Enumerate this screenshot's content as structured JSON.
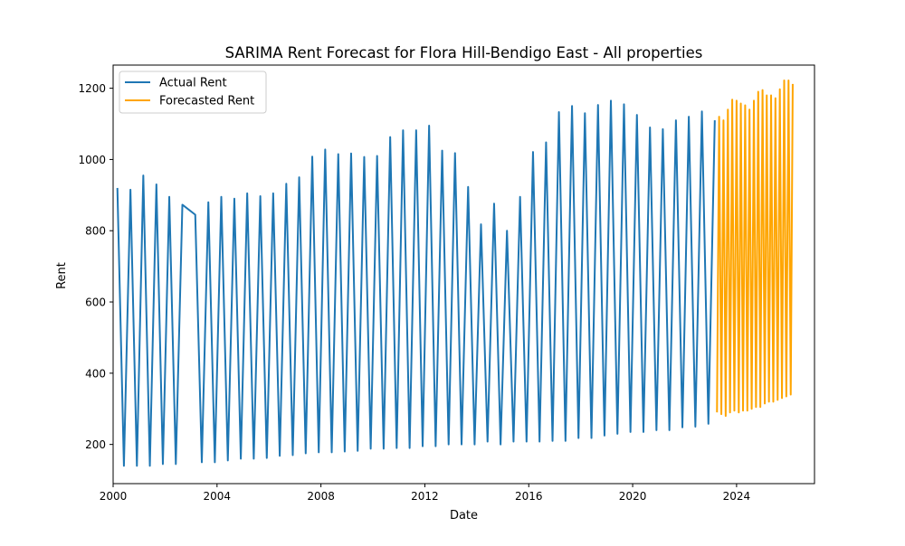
{
  "chart_data": {
    "type": "line",
    "title": "SARIMA Rent Forecast for Flora Hill-Bendigo East - All properties",
    "xlabel": "Date",
    "ylabel": "Rent",
    "xlim": [
      "2000-01-01",
      "2027-01-01"
    ],
    "ylim": [
      90,
      1265
    ],
    "x_ticks": [
      "2000",
      "2004",
      "2008",
      "2012",
      "2016",
      "2020",
      "2024"
    ],
    "y_ticks": [
      200,
      400,
      600,
      800,
      1000,
      1200
    ],
    "grid": false,
    "legend_position": "top-left",
    "series": [
      {
        "name": "Actual Rent",
        "color": "#1f77b4",
        "points": [
          [
            "2000-03-01",
            920
          ],
          [
            "2000-06-01",
            140
          ],
          [
            "2000-09-01",
            915
          ],
          [
            "2000-12-01",
            140
          ],
          [
            "2001-03-01",
            955
          ],
          [
            "2001-06-01",
            140
          ],
          [
            "2001-09-01",
            930
          ],
          [
            "2001-12-01",
            145
          ],
          [
            "2002-03-01",
            895
          ],
          [
            "2002-06-01",
            145
          ],
          [
            "2002-09-01",
            873
          ],
          [
            "2003-03-01",
            845
          ],
          [
            "2003-06-01",
            150
          ],
          [
            "2003-09-01",
            880
          ],
          [
            "2003-12-01",
            150
          ],
          [
            "2004-03-01",
            895
          ],
          [
            "2004-06-01",
            155
          ],
          [
            "2004-09-01",
            890
          ],
          [
            "2004-12-01",
            160
          ],
          [
            "2005-03-01",
            905
          ],
          [
            "2005-06-01",
            160
          ],
          [
            "2005-09-01",
            897
          ],
          [
            "2005-12-01",
            162
          ],
          [
            "2006-03-01",
            905
          ],
          [
            "2006-06-01",
            168
          ],
          [
            "2006-09-01",
            932
          ],
          [
            "2006-12-01",
            170
          ],
          [
            "2007-03-01",
            950
          ],
          [
            "2007-06-01",
            175
          ],
          [
            "2007-09-01",
            1008
          ],
          [
            "2007-12-01",
            178
          ],
          [
            "2008-03-01",
            1028
          ],
          [
            "2008-06-01",
            178
          ],
          [
            "2008-09-01",
            1015
          ],
          [
            "2008-12-01",
            180
          ],
          [
            "2009-03-01",
            1017
          ],
          [
            "2009-06-01",
            182
          ],
          [
            "2009-09-01",
            1007
          ],
          [
            "2009-12-01",
            188
          ],
          [
            "2010-03-01",
            1010
          ],
          [
            "2010-06-01",
            188
          ],
          [
            "2010-09-01",
            1063
          ],
          [
            "2010-12-01",
            190
          ],
          [
            "2011-03-01",
            1082
          ],
          [
            "2011-06-01",
            190
          ],
          [
            "2011-09-01",
            1082
          ],
          [
            "2011-12-01",
            195
          ],
          [
            "2012-03-01",
            1095
          ],
          [
            "2012-06-01",
            195
          ],
          [
            "2012-09-01",
            1025
          ],
          [
            "2012-12-01",
            200
          ],
          [
            "2013-03-01",
            1018
          ],
          [
            "2013-06-01",
            200
          ],
          [
            "2013-09-01",
            923
          ],
          [
            "2013-12-01",
            200
          ],
          [
            "2014-03-01",
            818
          ],
          [
            "2014-06-01",
            208
          ],
          [
            "2014-09-01",
            876
          ],
          [
            "2014-12-01",
            200
          ],
          [
            "2015-03-01",
            800
          ],
          [
            "2015-06-01",
            208
          ],
          [
            "2015-09-01",
            895
          ],
          [
            "2015-12-01",
            208
          ],
          [
            "2016-03-01",
            1021
          ],
          [
            "2016-06-01",
            208
          ],
          [
            "2016-09-01",
            1048
          ],
          [
            "2016-12-01",
            210
          ],
          [
            "2017-03-01",
            1133
          ],
          [
            "2017-06-01",
            210
          ],
          [
            "2017-09-01",
            1150
          ],
          [
            "2017-12-01",
            218
          ],
          [
            "2018-03-01",
            1130
          ],
          [
            "2018-06-01",
            218
          ],
          [
            "2018-09-01",
            1153
          ],
          [
            "2018-12-01",
            225
          ],
          [
            "2019-03-01",
            1165
          ],
          [
            "2019-06-01",
            230
          ],
          [
            "2019-09-01",
            1155
          ],
          [
            "2019-12-01",
            235
          ],
          [
            "2020-03-01",
            1125
          ],
          [
            "2020-06-01",
            235
          ],
          [
            "2020-09-01",
            1090
          ],
          [
            "2020-12-01",
            240
          ],
          [
            "2021-03-01",
            1085
          ],
          [
            "2021-06-01",
            240
          ],
          [
            "2021-09-01",
            1110
          ],
          [
            "2021-12-01",
            248
          ],
          [
            "2022-03-01",
            1120
          ],
          [
            "2022-06-01",
            250
          ],
          [
            "2022-09-01",
            1135
          ],
          [
            "2022-12-01",
            258
          ],
          [
            "2023-03-01",
            1110
          ]
        ]
      },
      {
        "name": "Forecasted Rent",
        "color": "#ffa500",
        "points": [
          [
            "2023-04-01",
            290
          ],
          [
            "2023-05-01",
            1120
          ],
          [
            "2023-06-01",
            285
          ],
          [
            "2023-07-01",
            1110
          ],
          [
            "2023-08-01",
            280
          ],
          [
            "2023-09-01",
            1140
          ],
          [
            "2023-10-01",
            290
          ],
          [
            "2023-11-01",
            1168
          ],
          [
            "2023-12-01",
            295
          ],
          [
            "2024-01-01",
            1165
          ],
          [
            "2024-02-01",
            290
          ],
          [
            "2024-03-01",
            1157
          ],
          [
            "2024-04-01",
            295
          ],
          [
            "2024-05-01",
            1152
          ],
          [
            "2024-06-01",
            295
          ],
          [
            "2024-07-01",
            1140
          ],
          [
            "2024-08-01",
            300
          ],
          [
            "2024-09-01",
            1165
          ],
          [
            "2024-10-01",
            305
          ],
          [
            "2024-11-01",
            1190
          ],
          [
            "2024-12-01",
            305
          ],
          [
            "2025-01-01",
            1195
          ],
          [
            "2025-02-01",
            315
          ],
          [
            "2025-03-01",
            1180
          ],
          [
            "2025-04-01",
            320
          ],
          [
            "2025-05-01",
            1180
          ],
          [
            "2025-06-01",
            320
          ],
          [
            "2025-07-01",
            1172
          ],
          [
            "2025-08-01",
            325
          ],
          [
            "2025-09-01",
            1197
          ],
          [
            "2025-10-01",
            330
          ],
          [
            "2025-11-01",
            1222
          ],
          [
            "2025-12-01",
            335
          ],
          [
            "2026-01-01",
            1222
          ],
          [
            "2026-02-01",
            340
          ],
          [
            "2026-03-01",
            1212
          ]
        ]
      }
    ]
  }
}
